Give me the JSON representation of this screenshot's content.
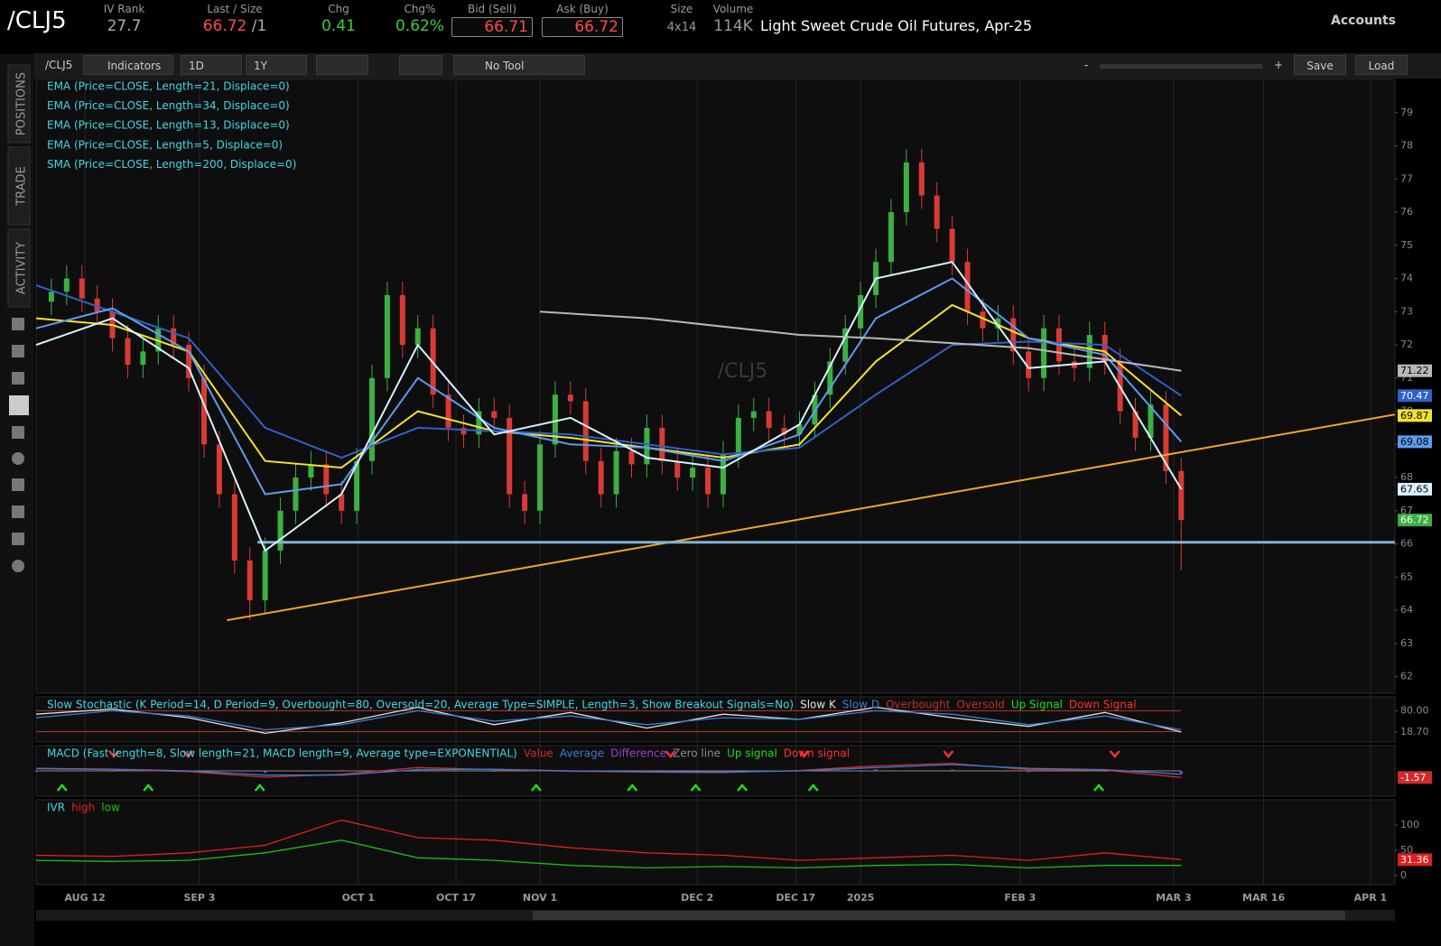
{
  "header": {
    "symbol": "/CLJ5",
    "iv_rank": {
      "label": "IV Rank",
      "value": "27.7"
    },
    "last": {
      "label": "Last / Size",
      "value": "66.72",
      "size": "/1"
    },
    "chg": {
      "label": "Chg",
      "value": "0.41"
    },
    "chg_pct": {
      "label": "Chg%",
      "value": "0.62%"
    },
    "bid": {
      "label": "Bid (Sell)",
      "value": "66.71"
    },
    "ask": {
      "label": "Ask (Buy)",
      "value": "66.72"
    },
    "size": {
      "label": "Size",
      "value": "4x14"
    },
    "volume": {
      "label": "Volume",
      "value": "114K"
    },
    "description": "Light Sweet Crude Oil Futures, Apr-25",
    "accounts": "Accounts"
  },
  "toolbar": {
    "symbol": "/CLJ5",
    "indicators": "Indicators",
    "aggregation": "1D",
    "range": "1Y",
    "tool": "No Tool",
    "zoom_out": "-",
    "zoom_in": "+",
    "save": "Save",
    "load": "Load"
  },
  "sidebar": {
    "tabs": [
      "POSITIONS",
      "TRADE",
      "ACTIVITY"
    ]
  },
  "chart_data": [
    {
      "type": "candlestick",
      "watermark": "/CLJ5",
      "up_color": "#3cb043",
      "down_color": "#d83a34",
      "legend_color": "#3fd8e6",
      "grid": "x",
      "last_value_labels": true,
      "xlim": [
        0,
        178
      ],
      "ylim": [
        61.5,
        80
      ],
      "yticks": [
        62,
        63,
        64,
        65,
        66,
        67,
        68,
        69,
        70,
        71,
        72,
        73,
        74,
        75,
        76,
        77,
        78,
        79
      ],
      "xticks": [
        {
          "value": 6.4,
          "label": "AUG 12"
        },
        {
          "value": 21.4,
          "label": "SEP 3"
        },
        {
          "value": 42.2,
          "label": "OCT 1"
        },
        {
          "value": 55,
          "label": "OCT 17"
        },
        {
          "value": 66,
          "label": "NOV 1"
        },
        {
          "value": 86.6,
          "label": "DEC 2"
        },
        {
          "value": 99.5,
          "label": "DEC 17"
        },
        {
          "value": 108,
          "label": "2025"
        },
        {
          "value": 128.9,
          "label": "FEB 3"
        },
        {
          "value": 149,
          "label": "MAR 3"
        },
        {
          "value": 160.8,
          "label": "MAR 16"
        },
        {
          "value": 174.8,
          "label": "APR 1"
        }
      ],
      "x": [
        2,
        4,
        6,
        8,
        10,
        12,
        14,
        16,
        18,
        20,
        22,
        24,
        26,
        28,
        30,
        32,
        34,
        36,
        38,
        40,
        42,
        44,
        46,
        48,
        50,
        52,
        54,
        56,
        58,
        60,
        62,
        64,
        66,
        68,
        70,
        72,
        74,
        76,
        78,
        80,
        82,
        84,
        86,
        88,
        90,
        92,
        94,
        96,
        98,
        100,
        102,
        104,
        106,
        108,
        110,
        112,
        114,
        116,
        118,
        120,
        122,
        124,
        126,
        128,
        130,
        132,
        134,
        136,
        138,
        140,
        142,
        144,
        146,
        148,
        150
      ],
      "open": [
        73.3,
        73.6,
        74.0,
        73.4,
        73.0,
        72.2,
        71.4,
        71.8,
        72.5,
        72.0,
        71.0,
        69.0,
        67.5,
        65.5,
        64.3,
        65.8,
        67.0,
        68.0,
        68.4,
        67.5,
        67.0,
        68.5,
        71.0,
        73.5,
        72.0,
        72.5,
        70.5,
        69.5,
        69.3,
        70.0,
        69.8,
        67.5,
        67.0,
        69.0,
        70.5,
        70.3,
        68.5,
        67.5,
        68.8,
        68.4,
        69.5,
        68.5,
        68.0,
        68.3,
        67.5,
        68.7,
        69.8,
        70.0,
        69.5,
        69.3,
        69.6,
        70.5,
        71.5,
        72.5,
        73.5,
        74.5,
        76.0,
        77.5,
        76.5,
        75.5,
        74.5,
        73.0,
        72.5,
        72.8,
        71.8,
        71.0,
        72.5,
        71.5,
        71.3,
        72.3,
        71.5,
        70.0,
        69.2,
        70.2,
        68.2
      ],
      "high": [
        74.0,
        74.4,
        74.4,
        73.8,
        73.4,
        72.6,
        72.2,
        72.9,
        72.9,
        72.4,
        71.4,
        69.4,
        67.9,
        65.9,
        66.2,
        67.4,
        68.4,
        68.8,
        68.8,
        67.9,
        68.9,
        71.4,
        73.9,
        73.9,
        72.9,
        72.9,
        70.9,
        69.9,
        70.4,
        70.4,
        70.2,
        67.9,
        69.4,
        70.9,
        70.9,
        70.7,
        68.9,
        69.2,
        69.2,
        69.9,
        69.9,
        68.9,
        68.7,
        68.7,
        69.1,
        70.2,
        70.4,
        70.4,
        69.9,
        70.0,
        70.9,
        71.9,
        72.9,
        73.9,
        74.9,
        76.4,
        77.9,
        77.9,
        76.9,
        75.9,
        74.9,
        73.4,
        73.2,
        73.2,
        72.2,
        72.9,
        72.9,
        71.9,
        72.7,
        72.7,
        71.9,
        70.4,
        70.6,
        70.6,
        68.6
      ],
      "low": [
        72.9,
        73.2,
        73.0,
        72.6,
        71.8,
        71.0,
        71.0,
        71.4,
        71.6,
        70.6,
        68.6,
        67.1,
        65.1,
        63.7,
        63.9,
        65.4,
        66.6,
        67.6,
        67.1,
        66.6,
        66.6,
        68.1,
        70.6,
        71.6,
        71.6,
        70.1,
        69.1,
        68.9,
        68.9,
        69.4,
        67.1,
        66.6,
        66.6,
        68.6,
        69.9,
        68.1,
        67.1,
        67.1,
        68.0,
        68.0,
        68.1,
        67.6,
        67.6,
        67.1,
        67.1,
        68.3,
        69.4,
        69.1,
        68.9,
        68.9,
        69.2,
        70.1,
        71.1,
        72.1,
        73.1,
        74.1,
        75.6,
        76.1,
        75.1,
        74.1,
        72.6,
        72.1,
        72.1,
        71.4,
        70.6,
        70.6,
        71.1,
        70.9,
        70.9,
        71.1,
        69.6,
        68.8,
        68.8,
        67.8,
        65.2
      ],
      "close": [
        73.6,
        74.0,
        73.4,
        73.0,
        72.2,
        71.4,
        71.8,
        72.5,
        72.0,
        71.0,
        69.0,
        67.5,
        65.5,
        64.3,
        65.8,
        67.0,
        68.0,
        68.4,
        67.5,
        67.0,
        68.5,
        71.0,
        73.5,
        72.0,
        72.5,
        70.5,
        69.5,
        69.3,
        70.0,
        69.8,
        67.5,
        67.0,
        69.0,
        70.5,
        70.3,
        68.5,
        67.5,
        68.8,
        68.4,
        69.5,
        68.5,
        68.0,
        68.3,
        67.5,
        68.7,
        69.8,
        70.0,
        69.5,
        69.3,
        69.6,
        70.5,
        71.5,
        72.5,
        73.5,
        74.5,
        76.0,
        77.5,
        76.5,
        75.5,
        74.5,
        73.0,
        72.5,
        72.8,
        71.8,
        71.0,
        72.5,
        71.5,
        71.3,
        72.3,
        71.5,
        70.0,
        69.2,
        70.2,
        68.2,
        66.72
      ],
      "series": [
        {
          "name": "EMA (Price=CLOSE, Length=21, Displace=0)",
          "color": "#f2e22c",
          "x": [
            0,
            10,
            20,
            30,
            40,
            50,
            60,
            70,
            80,
            90,
            100,
            110,
            120,
            130,
            140,
            150
          ],
          "values": [
            72.8,
            72.6,
            71.8,
            68.5,
            68.3,
            70.0,
            69.4,
            69.2,
            68.9,
            68.6,
            69.0,
            71.5,
            73.2,
            72.2,
            71.8,
            69.87
          ]
        },
        {
          "name": "EMA (Price=CLOSE, Length=34, Displace=0)",
          "color": "#2f62c8",
          "x": [
            0,
            10,
            20,
            30,
            40,
            50,
            60,
            70,
            80,
            90,
            100,
            110,
            120,
            130,
            140,
            150
          ],
          "values": [
            73.8,
            73.0,
            72.2,
            69.5,
            68.6,
            69.5,
            69.4,
            69.3,
            69.0,
            68.7,
            68.9,
            70.5,
            72.0,
            72.1,
            72.0,
            70.47
          ]
        },
        {
          "name": "EMA (Price=CLOSE, Length=13, Displace=0)",
          "color": "#5b9cf0",
          "x": [
            0,
            10,
            20,
            30,
            40,
            50,
            60,
            70,
            80,
            90,
            100,
            110,
            120,
            130,
            140,
            150
          ],
          "values": [
            72.5,
            73.1,
            71.8,
            67.5,
            67.8,
            71.0,
            69.5,
            69.0,
            68.9,
            68.5,
            69.3,
            72.8,
            74.0,
            72.2,
            71.7,
            69.08
          ]
        },
        {
          "name": "EMA (Price=CLOSE, Length=5, Displace=0)",
          "color": "#d8f2ff",
          "x": [
            0,
            10,
            20,
            30,
            40,
            50,
            60,
            70,
            80,
            90,
            100,
            110,
            120,
            130,
            140,
            150
          ],
          "values": [
            72.0,
            72.8,
            71.3,
            65.8,
            67.5,
            72.0,
            69.3,
            69.8,
            68.6,
            68.3,
            69.6,
            74.0,
            74.5,
            71.3,
            71.5,
            67.65
          ]
        },
        {
          "name": "SMA (Price=CLOSE, Length=200, Displace=0)",
          "color": "#b8b8b8",
          "x": [
            66,
            80,
            100,
            110,
            130,
            150
          ],
          "values": [
            73.0,
            72.8,
            72.3,
            72.2,
            71.9,
            71.22
          ]
        }
      ],
      "annotation_lines": [
        {
          "color": "#f5a623",
          "x": [
            25,
            178
          ],
          "y": [
            63.7,
            69.9
          ]
        },
        {
          "color": "#7fb3d5",
          "x": [
            29,
            178
          ],
          "y": [
            66.05,
            66.05
          ]
        }
      ]
    },
    {
      "type": "line",
      "study": "Slow Stochastic (K Period=14, D Period=9, Overbought=80, Oversold=20, Average Type=SIMPLE, Length=3, Show Breakout Signals=No)",
      "study_color": "#3fd8e6",
      "ylim": [
        -10,
        120
      ],
      "yticks": [
        {
          "value": 80,
          "label": "80.00"
        },
        {
          "value": 18.7,
          "label": "18.70"
        }
      ],
      "x": [
        0,
        10,
        20,
        30,
        40,
        50,
        60,
        70,
        80,
        90,
        100,
        110,
        120,
        130,
        140,
        150
      ],
      "series": [
        {
          "name": "Slow K",
          "color": "#e0e0e0",
          "values": [
            70,
            85,
            60,
            15,
            45,
            90,
            40,
            75,
            30,
            70,
            55,
            90,
            60,
            35,
            75,
            18.7
          ]
        },
        {
          "name": "Slow D",
          "color": "#3a7bd5",
          "values": [
            60,
            80,
            65,
            25,
            40,
            80,
            50,
            65,
            40,
            60,
            55,
            80,
            70,
            40,
            65,
            25
          ]
        }
      ],
      "levels": [
        {
          "name": "Overbought",
          "value": 80,
          "color": "#c0302a"
        },
        {
          "name": "Oversold",
          "value": 20,
          "color": "#c0302a"
        }
      ],
      "signals": [
        {
          "name": "Up Signal",
          "color": "#19e019",
          "position": "bottom",
          "x": []
        },
        {
          "name": "Down Signal",
          "color": "#ff3030",
          "position": "top",
          "x": []
        }
      ]
    },
    {
      "type": "line",
      "study": "MACD (Fast length=8, Slow length=21, MACD length=9, Average type=EXPONENTIAL)",
      "study_color": "#3fd8e6",
      "ylim": [
        -6,
        6
      ],
      "yticks": [],
      "x": [
        0,
        10,
        20,
        30,
        40,
        50,
        60,
        70,
        80,
        90,
        100,
        110,
        120,
        130,
        140,
        150
      ],
      "series": [
        {
          "name": "Value",
          "color": "#d02a2a",
          "last_label": true,
          "values": [
            0.5,
            0.3,
            -0.2,
            -1.5,
            -0.8,
            0.8,
            0.3,
            -0.1,
            -0.3,
            -0.4,
            0.1,
            1.2,
            1.8,
            0.3,
            0.2,
            -1.57
          ]
        },
        {
          "name": "Average",
          "color": "#3a7bd5",
          "values": [
            0.6,
            0.4,
            0,
            -1,
            -1,
            0.3,
            0.4,
            0,
            -0.2,
            -0.3,
            0,
            0.8,
            1.5,
            0.6,
            0.3,
            -0.8
          ]
        },
        {
          "name": "Difference",
          "color": "#9b3fd0",
          "style": "histogram",
          "values": [
            -0.1,
            -0.1,
            -0.2,
            -0.5,
            0.2,
            0.5,
            -0.1,
            -0.1,
            -0.1,
            -0.1,
            0.1,
            0.4,
            0.3,
            -0.3,
            -0.1,
            -0.77
          ]
        }
      ],
      "levels": [
        {
          "name": "Zero line",
          "value": 0,
          "color": "#8a8a8a"
        }
      ],
      "signals": [
        {
          "name": "Up signal",
          "color": "#19e019",
          "position": "bottom",
          "x": [
            3.4,
            14.7,
            29.3,
            65.5,
            78.1,
            86.4,
            92.5,
            101.8,
            139.2
          ]
        },
        {
          "name": "Down signal",
          "color": "#ff3030",
          "position": "top",
          "x": [
            10.2,
            19.9,
            83.1,
            100.6,
            119.5,
            141.3
          ]
        }
      ]
    },
    {
      "type": "line",
      "study": "IVR",
      "study_color": "#3fd8e6",
      "ylim": [
        -18,
        150
      ],
      "yticks": [
        100,
        50,
        0
      ],
      "x": [
        0,
        10,
        20,
        30,
        40,
        50,
        60,
        70,
        80,
        90,
        100,
        110,
        120,
        130,
        140,
        150
      ],
      "series": [
        {
          "name": "high",
          "color": "#e02020",
          "last_label": true,
          "values": [
            40,
            38,
            45,
            60,
            110,
            75,
            70,
            55,
            45,
            40,
            30,
            35,
            40,
            30,
            45,
            31.36
          ]
        },
        {
          "name": "low",
          "color": "#19c019",
          "values": [
            30,
            28,
            30,
            45,
            70,
            35,
            30,
            20,
            15,
            18,
            15,
            20,
            22,
            15,
            20,
            20
          ]
        }
      ],
      "levels": [],
      "signals": []
    }
  ]
}
